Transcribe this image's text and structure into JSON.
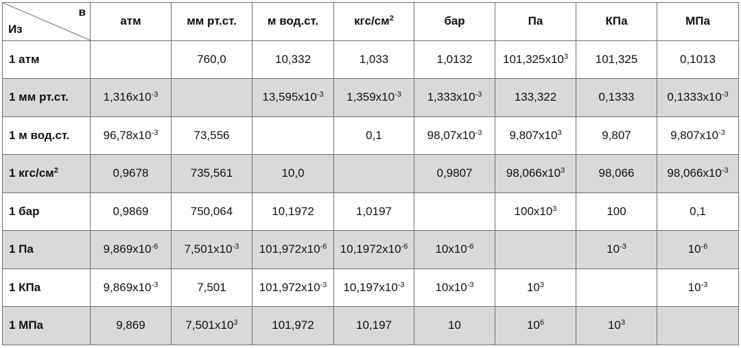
{
  "table": {
    "corner": {
      "to": "в",
      "from": "Из"
    },
    "columns": [
      "атм",
      "мм рт.ст.",
      "м вод.ст.",
      {
        "text": "кгс/см",
        "sup": "2"
      },
      "бар",
      "Па",
      "КПа",
      "МПа"
    ],
    "rows": [
      {
        "label": "1 атм",
        "cells": [
          null,
          "760,0",
          "10,332",
          "1,033",
          "1,0132",
          {
            "text": "101,325x10",
            "sup": "3"
          },
          "101,325",
          "0,1013"
        ]
      },
      {
        "label": "1 мм рт.ст.",
        "cells": [
          {
            "text": "1,316x10",
            "sup": "-3"
          },
          null,
          {
            "text": "13,595x10",
            "sup": "-3"
          },
          {
            "text": "1,359x10",
            "sup": "-3"
          },
          {
            "text": "1,333x10",
            "sup": "-3"
          },
          "133,322",
          "0,1333",
          {
            "text": "0,1333x10",
            "sup": "-3"
          }
        ]
      },
      {
        "label": "1 м вод.ст.",
        "cells": [
          {
            "text": "96,78x10",
            "sup": "-3"
          },
          "73,556",
          null,
          "0,1",
          {
            "text": "98,07x10",
            "sup": "-3"
          },
          {
            "text": "9,807x10",
            "sup": "3"
          },
          "9,807",
          {
            "text": "9,807x10",
            "sup": "-3"
          }
        ]
      },
      {
        "label": {
          "text": "1 кгс/см",
          "sup": "2"
        },
        "cells": [
          "0,9678",
          "735,561",
          "10,0",
          null,
          "0,9807",
          {
            "text": "98,066x10",
            "sup": "3"
          },
          "98,066",
          {
            "text": "98,066x10",
            "sup": "-3"
          }
        ]
      },
      {
        "label": "1 бар",
        "cells": [
          "0,9869",
          "750,064",
          "10,1972",
          "1,0197",
          null,
          {
            "text": "100x10",
            "sup": "3"
          },
          "100",
          "0,1"
        ]
      },
      {
        "label": "1 Па",
        "cells": [
          {
            "text": "9,869x10",
            "sup": "-6"
          },
          {
            "text": "7,501x10",
            "sup": "-3"
          },
          {
            "text": "101,972x10",
            "sup": "-6"
          },
          {
            "text": "10,1972x10",
            "sup": "-6"
          },
          {
            "text": "10x10",
            "sup": "-6"
          },
          null,
          {
            "text": "10",
            "sup": "-3"
          },
          {
            "text": "10",
            "sup": "-6"
          }
        ]
      },
      {
        "label": "1 КПа",
        "cells": [
          {
            "text": "9,869x10",
            "sup": "-3"
          },
          "7,501",
          {
            "text": "101,972x10",
            "sup": "-3"
          },
          {
            "text": "10,197x10",
            "sup": "-3"
          },
          {
            "text": "10x10",
            "sup": "-3"
          },
          {
            "text": "10",
            "sup": "3"
          },
          null,
          {
            "text": "10",
            "sup": "-3"
          }
        ]
      },
      {
        "label": "1 МПа",
        "cells": [
          "9,869",
          {
            "text": "7,501x10",
            "sup": "3"
          },
          "101,972",
          "10,197",
          "10",
          {
            "text": "10",
            "sup": "6"
          },
          {
            "text": "10",
            "sup": "3"
          },
          null
        ]
      }
    ]
  }
}
